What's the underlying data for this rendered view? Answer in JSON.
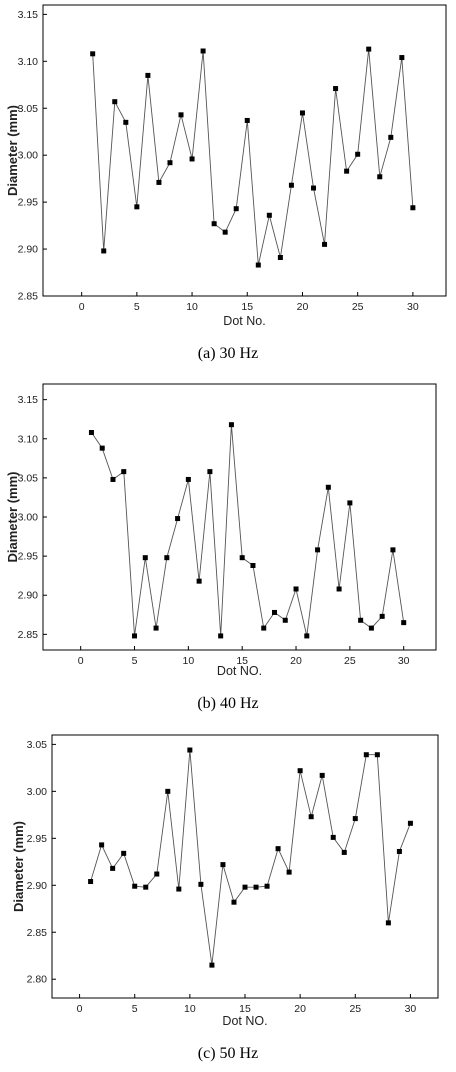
{
  "chart_data": [
    {
      "type": "line",
      "caption": "(a) 30 Hz",
      "xlabel": "Dot No.",
      "ylabel": "Diameter (mm)",
      "xlim": [
        -3.5,
        33
      ],
      "ylim": [
        2.85,
        3.16
      ],
      "xticks": [
        0,
        5,
        10,
        15,
        20,
        25,
        30
      ],
      "yticks": [
        "2.85",
        "2.90",
        "2.95",
        "3.00",
        "3.05",
        "3.10",
        "3.15"
      ],
      "series": [
        {
          "x": [
            1,
            2,
            3,
            4,
            5,
            6,
            7,
            8,
            9,
            10,
            11,
            12,
            13,
            14,
            15,
            16,
            17,
            18,
            19,
            20,
            21,
            22,
            23,
            24,
            25,
            26,
            27,
            28,
            29,
            30
          ],
          "values": [
            3.108,
            2.898,
            3.057,
            3.035,
            2.945,
            3.085,
            2.971,
            2.992,
            3.043,
            2.996,
            3.111,
            2.927,
            2.918,
            2.943,
            3.037,
            2.883,
            2.936,
            2.891,
            2.968,
            3.045,
            2.965,
            2.905,
            3.071,
            2.983,
            3.001,
            3.113,
            2.977,
            3.019,
            3.104,
            2.944
          ]
        }
      ]
    },
    {
      "type": "line",
      "caption": "(b) 40 Hz",
      "xlabel": "Dot NO.",
      "ylabel": "Diameter (mm)",
      "xlim": [
        -3.5,
        33
      ],
      "ylim": [
        2.83,
        3.17
      ],
      "xticks": [
        0,
        5,
        10,
        15,
        20,
        25,
        30
      ],
      "yticks": [
        "2.85",
        "2.90",
        "2.95",
        "3.00",
        "3.05",
        "3.10",
        "3.15"
      ],
      "series": [
        {
          "x": [
            1,
            2,
            3,
            4,
            5,
            6,
            7,
            8,
            9,
            10,
            11,
            12,
            13,
            14,
            15,
            16,
            17,
            18,
            19,
            20,
            21,
            22,
            23,
            24,
            25,
            26,
            27,
            28,
            29,
            30
          ],
          "values": [
            3.108,
            3.088,
            3.048,
            3.058,
            2.848,
            2.948,
            2.858,
            2.948,
            2.998,
            3.048,
            2.918,
            3.058,
            2.848,
            3.118,
            2.948,
            2.938,
            2.858,
            2.878,
            2.868,
            2.908,
            2.848,
            2.958,
            3.038,
            2.908,
            3.018,
            2.868,
            2.858,
            2.873,
            2.958,
            2.865
          ]
        }
      ]
    },
    {
      "type": "line",
      "caption": "(c) 50 Hz",
      "xlabel": "Dot NO.",
      "ylabel": "Diameter (mm)",
      "xlim": [
        -2.5,
        32.5
      ],
      "ylim": [
        2.78,
        3.06
      ],
      "xticks": [
        0,
        5,
        10,
        15,
        20,
        25,
        30
      ],
      "yticks": [
        "2.80",
        "2.85",
        "2.90",
        "2.95",
        "3.00",
        "3.05"
      ],
      "series": [
        {
          "x": [
            1,
            2,
            3,
            4,
            5,
            6,
            7,
            8,
            9,
            10,
            11,
            12,
            13,
            14,
            15,
            16,
            17,
            18,
            19,
            20,
            21,
            22,
            23,
            24,
            25,
            26,
            27,
            28,
            29,
            30
          ],
          "values": [
            2.904,
            2.943,
            2.918,
            2.934,
            2.899,
            2.898,
            2.912,
            3.0,
            2.896,
            3.044,
            2.901,
            2.815,
            2.922,
            2.882,
            2.898,
            2.898,
            2.899,
            2.939,
            2.914,
            3.022,
            2.973,
            3.017,
            2.951,
            2.935,
            2.971,
            3.039,
            3.039,
            2.86,
            2.936,
            2.966
          ]
        }
      ]
    }
  ]
}
